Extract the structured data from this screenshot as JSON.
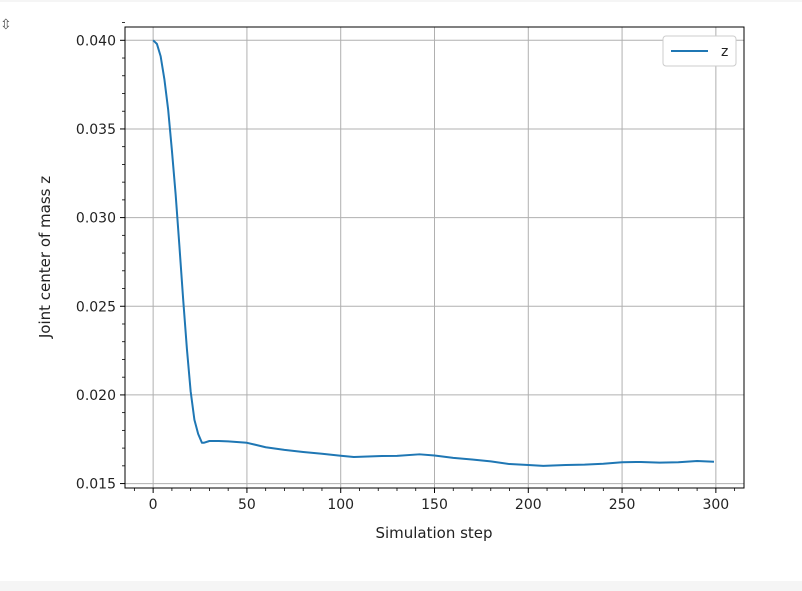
{
  "output_toggle_icon": "expand-collapse-icon",
  "chart_data": {
    "type": "line",
    "title": "",
    "xlabel": "Simulation step",
    "ylabel": "Joint center of mass z",
    "xlim": [
      -15,
      315
    ],
    "ylim": [
      0.01475,
      0.04075
    ],
    "xticks": [
      0,
      50,
      100,
      150,
      200,
      250,
      300
    ],
    "xtick_labels": [
      "0",
      "50",
      "100",
      "150",
      "200",
      "250",
      "300"
    ],
    "yticks": [
      0.015,
      0.02,
      0.025,
      0.03,
      0.035,
      0.04
    ],
    "ytick_labels": [
      "0.015",
      "0.020",
      "0.025",
      "0.030",
      "0.035",
      "0.040"
    ],
    "grid": true,
    "legend_position": "top-right",
    "series": [
      {
        "name": "z",
        "color": "#1f77b4",
        "x": [
          0,
          2,
          4,
          6,
          8,
          10,
          12,
          14,
          16,
          18,
          20,
          22,
          24,
          26,
          27,
          30,
          35,
          40,
          50,
          60,
          70,
          80,
          90,
          100,
          107,
          120,
          130,
          142,
          150,
          160,
          170,
          180,
          190,
          200,
          208,
          220,
          230,
          240,
          250,
          260,
          270,
          280,
          290,
          299
        ],
        "values": [
          0.04,
          0.0398,
          0.0391,
          0.0378,
          0.0361,
          0.0338,
          0.0313,
          0.0284,
          0.0254,
          0.0226,
          0.0202,
          0.0186,
          0.0178,
          0.0173,
          0.0173,
          0.0174,
          0.0174,
          0.01738,
          0.0173,
          0.01705,
          0.0169,
          0.01678,
          0.01668,
          0.01657,
          0.0165,
          0.01655,
          0.01656,
          0.01665,
          0.01658,
          0.01645,
          0.01636,
          0.01625,
          0.0161,
          0.01605,
          0.016,
          0.01605,
          0.01607,
          0.01612,
          0.0162,
          0.01622,
          0.01618,
          0.0162,
          0.01627,
          0.01623
        ]
      }
    ]
  }
}
